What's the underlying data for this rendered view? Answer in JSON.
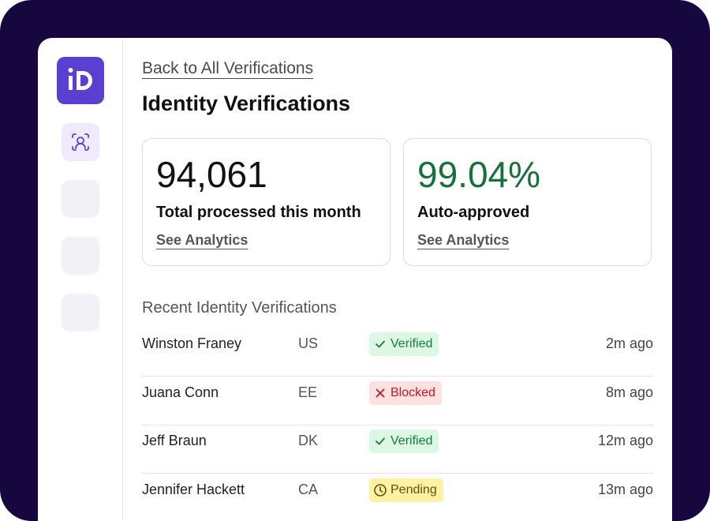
{
  "header": {
    "back_link": "Back to All Verifications",
    "title": "Identity Verifications"
  },
  "stats": [
    {
      "value": "94,061",
      "label": "Total processed this month",
      "link": "See Analytics",
      "color": "#111111"
    },
    {
      "value": "99.04%",
      "label": "Auto-approved",
      "link": "See Analytics",
      "color": "#17713a"
    }
  ],
  "recent": {
    "title": "Recent Identity Verifications",
    "rows": [
      {
        "name": "Winston Franey",
        "country": "US",
        "status": {
          "label": "Verified",
          "icon": "check",
          "color": "#18773e",
          "background": "#dcf7e4"
        },
        "time": "2m ago"
      },
      {
        "name": "Juana Conn",
        "country": "EE",
        "status": {
          "label": "Blocked",
          "icon": "cross",
          "color": "#c0182b",
          "background": "#fde0e0"
        },
        "time": "8m ago"
      },
      {
        "name": "Jeff Braun",
        "country": "DK",
        "status": {
          "label": "Verified",
          "icon": "check",
          "color": "#18773e",
          "background": "#dcf7e4"
        },
        "time": "12m ago"
      },
      {
        "name": "Jennifer Hackett",
        "country": "CA",
        "status": {
          "label": "Pending",
          "icon": "clock",
          "color": "#6b4d00",
          "background": "#fdf1a6"
        },
        "time": "13m ago"
      }
    ]
  }
}
